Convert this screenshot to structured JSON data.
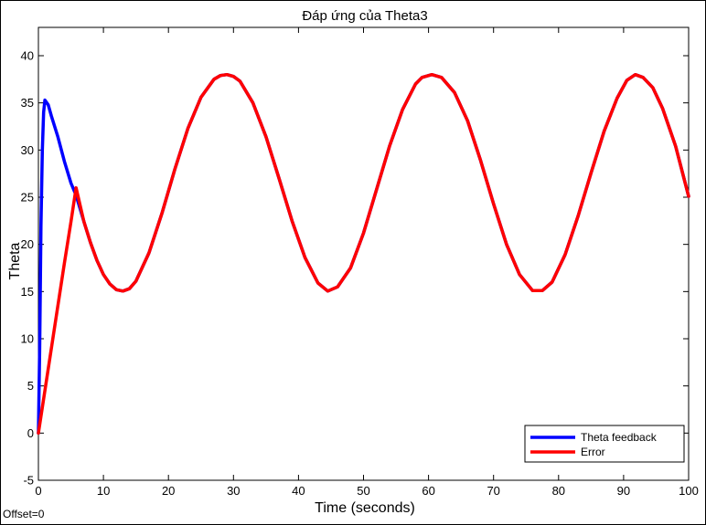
{
  "chart_data": {
    "type": "line",
    "title": "Đáp ứng của Theta3",
    "xlabel": "Time (seconds)",
    "ylabel": "Theta",
    "xlim": [
      0,
      100
    ],
    "ylim": [
      -5,
      43
    ],
    "xticks": [
      0,
      10,
      20,
      30,
      40,
      50,
      60,
      70,
      80,
      90,
      100
    ],
    "yticks": [
      -5,
      0,
      5,
      10,
      15,
      20,
      25,
      30,
      35,
      40
    ],
    "grid": false,
    "legend_position": "bottom-right",
    "series": [
      {
        "name": "Theta feedback",
        "color": "#0000ff",
        "x": [
          0,
          0.2,
          0.4,
          0.6,
          0.8,
          1.0,
          1.5,
          2,
          3,
          4,
          5,
          5.8,
          7,
          8,
          9,
          10,
          11,
          12,
          13,
          14,
          15,
          17,
          19,
          21,
          23,
          25,
          27,
          28,
          29,
          30,
          31,
          33,
          35,
          37,
          39,
          41,
          43,
          44.5,
          46,
          48,
          50,
          52,
          54,
          56,
          58,
          59,
          60.5,
          62,
          64,
          66,
          68,
          70,
          72,
          74,
          76,
          77.5,
          79,
          81,
          83,
          85,
          87,
          89,
          90.5,
          91.8,
          93,
          94.5,
          96,
          98,
          100
        ],
        "y": [
          0,
          9,
          22,
          30,
          34,
          35.3,
          34.8,
          33.6,
          31.4,
          28.8,
          26.5,
          25.2,
          22.4,
          20.2,
          18.3,
          16.8,
          15.8,
          15.2,
          15.05,
          15.3,
          16.1,
          19.1,
          23.3,
          28.0,
          32.3,
          35.6,
          37.5,
          37.9,
          38.0,
          37.8,
          37.3,
          35.0,
          31.4,
          27.0,
          22.5,
          18.6,
          15.9,
          15.05,
          15.5,
          17.5,
          21.2,
          25.8,
          30.4,
          34.3,
          37.0,
          37.7,
          38.0,
          37.7,
          36.1,
          33.1,
          28.9,
          24.3,
          20.0,
          16.8,
          15.1,
          15.1,
          16.0,
          18.9,
          23.0,
          27.6,
          32.0,
          35.5,
          37.4,
          38.0,
          37.7,
          36.6,
          34.4,
          30.4,
          25.1
        ]
      },
      {
        "name": "Error",
        "color": "#ff0000",
        "x": [
          0,
          1,
          2,
          3,
          4,
          5,
          5.8,
          7,
          8,
          9,
          10,
          11,
          12,
          13,
          14,
          15,
          17,
          19,
          21,
          23,
          25,
          27,
          28,
          29,
          30,
          31,
          33,
          35,
          37,
          39,
          41,
          43,
          44.5,
          46,
          48,
          50,
          52,
          54,
          56,
          58,
          59,
          60.5,
          62,
          64,
          66,
          68,
          70,
          72,
          74,
          76,
          77.5,
          79,
          81,
          83,
          85,
          87,
          89,
          90.5,
          91.8,
          93,
          94.5,
          96,
          98,
          100
        ],
        "y": [
          0,
          4.5,
          9.0,
          13.5,
          18.0,
          22.4,
          26.0,
          22.4,
          20.2,
          18.3,
          16.8,
          15.8,
          15.2,
          15.05,
          15.3,
          16.1,
          19.1,
          23.3,
          28.0,
          32.3,
          35.6,
          37.5,
          37.9,
          38.0,
          37.8,
          37.3,
          35.0,
          31.4,
          27.0,
          22.5,
          18.6,
          15.9,
          15.05,
          15.5,
          17.5,
          21.2,
          25.8,
          30.4,
          34.3,
          37.0,
          37.7,
          38.0,
          37.7,
          36.1,
          33.1,
          28.9,
          24.3,
          20.0,
          16.8,
          15.1,
          15.1,
          16.0,
          18.9,
          23.0,
          27.6,
          32.0,
          35.5,
          37.4,
          38.0,
          37.7,
          36.6,
          34.4,
          30.4,
          25.1
        ]
      }
    ],
    "annotation": "Offset=0"
  }
}
